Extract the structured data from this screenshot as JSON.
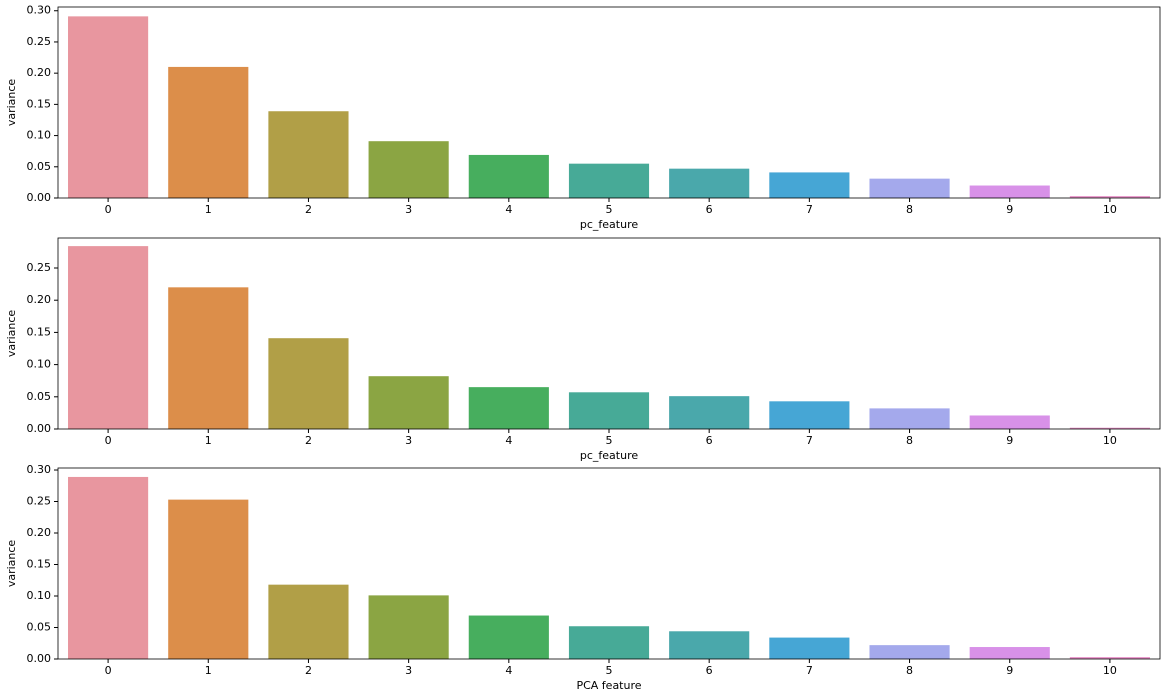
{
  "chart_data": [
    {
      "type": "bar",
      "xlabel": "pc_feature",
      "ylabel": "variance",
      "categories": [
        "0",
        "1",
        "2",
        "3",
        "4",
        "5",
        "6",
        "7",
        "8",
        "9",
        "10"
      ],
      "values": [
        0.291,
        0.21,
        0.139,
        0.091,
        0.069,
        0.055,
        0.047,
        0.041,
        0.031,
        0.02,
        0.003
      ],
      "colors": [
        "#e8969f",
        "#dc8e4a",
        "#b19f47",
        "#8ba543",
        "#47ae5e",
        "#47aa97",
        "#4aa8ab",
        "#46a6d5",
        "#a4a9ec",
        "#d891e8",
        "#e890c8"
      ],
      "ylim": [
        0,
        0.306
      ],
      "yticks": [
        {
          "value": 0,
          "label": "0.00"
        },
        {
          "value": 0.05,
          "label": "0.05"
        },
        {
          "value": 0.1,
          "label": "0.10"
        },
        {
          "value": 0.15,
          "label": "0.15"
        },
        {
          "value": 0.2,
          "label": "0.20"
        },
        {
          "value": 0.25,
          "label": "0.25"
        },
        {
          "value": 0.3,
          "label": "0.30"
        }
      ]
    },
    {
      "type": "bar",
      "xlabel": "pc_feature",
      "ylabel": "variance",
      "categories": [
        "0",
        "1",
        "2",
        "3",
        "4",
        "5",
        "6",
        "7",
        "8",
        "9",
        "10"
      ],
      "values": [
        0.284,
        0.22,
        0.141,
        0.082,
        0.065,
        0.057,
        0.051,
        0.043,
        0.032,
        0.021,
        0.002
      ],
      "colors": [
        "#e8969f",
        "#dc8e4a",
        "#b19f47",
        "#8ba543",
        "#47ae5e",
        "#47aa97",
        "#4aa8ab",
        "#46a6d5",
        "#a4a9ec",
        "#d891e8",
        "#e890c8"
      ],
      "ylim": [
        0,
        0.2966
      ],
      "yticks": [
        {
          "value": 0,
          "label": "0.00"
        },
        {
          "value": 0.05,
          "label": "0.05"
        },
        {
          "value": 0.1,
          "label": "0.10"
        },
        {
          "value": 0.15,
          "label": "0.15"
        },
        {
          "value": 0.2,
          "label": "0.20"
        },
        {
          "value": 0.25,
          "label": "0.25"
        }
      ]
    },
    {
      "type": "bar",
      "xlabel": "PCA feature",
      "ylabel": "variance",
      "categories": [
        "0",
        "1",
        "2",
        "3",
        "4",
        "5",
        "6",
        "7",
        "8",
        "9",
        "10"
      ],
      "values": [
        0.289,
        0.253,
        0.118,
        0.101,
        0.069,
        0.052,
        0.044,
        0.034,
        0.022,
        0.019,
        0.003
      ],
      "colors": [
        "#e8969f",
        "#dc8e4a",
        "#b19f47",
        "#8ba543",
        "#47ae5e",
        "#47aa97",
        "#4aa8ab",
        "#46a6d5",
        "#a4a9ec",
        "#d891e8",
        "#e890c8"
      ],
      "ylim": [
        0,
        0.3032
      ],
      "yticks": [
        {
          "value": 0,
          "label": "0.00"
        },
        {
          "value": 0.05,
          "label": "0.05"
        },
        {
          "value": 0.1,
          "label": "0.10"
        },
        {
          "value": 0.15,
          "label": "0.15"
        },
        {
          "value": 0.2,
          "label": "0.20"
        },
        {
          "value": 0.25,
          "label": "0.25"
        },
        {
          "value": 0.3,
          "label": "0.30"
        }
      ]
    }
  ]
}
